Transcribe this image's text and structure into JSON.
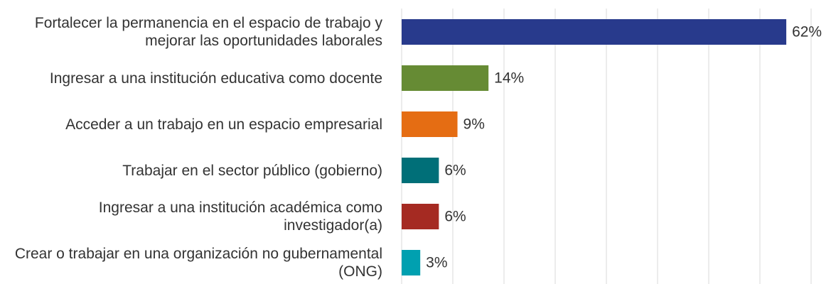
{
  "chart_data": {
    "type": "bar",
    "orientation": "horizontal",
    "categories": [
      "Fortalecer la permanencia en el espacio de trabajo y mejorar las oportunidades laborales",
      "Ingresar a una institución educativa como docente",
      "Acceder a un trabajo en un espacio empresarial",
      "Trabajar en el sector público (gobierno)",
      "Ingresar a una institución académica como investigador(a)",
      "Crear o trabajar en una organización no gubernamental (ONG)"
    ],
    "values": [
      62,
      14,
      9,
      6,
      6,
      3
    ],
    "value_labels": [
      "62%",
      "14%",
      "9%",
      "6%",
      "6%",
      "3%"
    ],
    "colors": [
      "#283a8c",
      "#668b34",
      "#e56d13",
      "#006f78",
      "#a52a22",
      "#00a0b0"
    ],
    "xlim": [
      0,
      66
    ],
    "grid": true
  }
}
